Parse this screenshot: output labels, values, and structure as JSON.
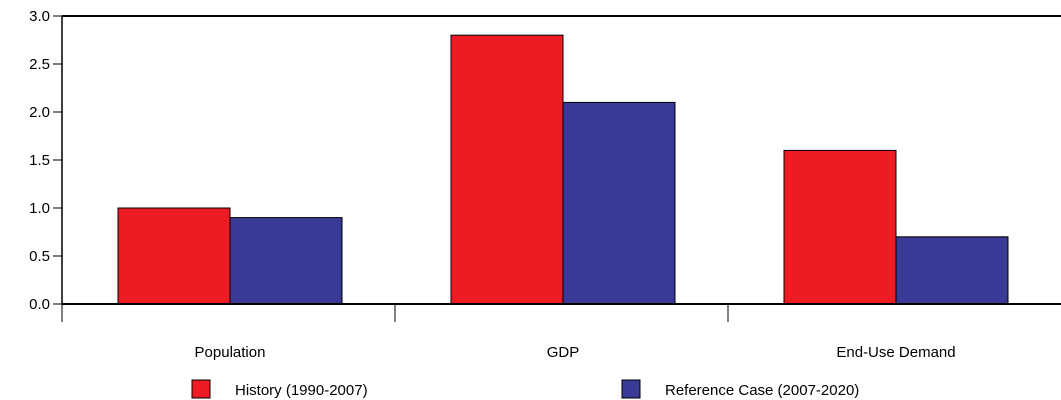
{
  "chart_data": {
    "type": "bar",
    "title": "",
    "xlabel": "",
    "ylabel": "",
    "ylim": [
      0,
      3.0
    ],
    "yticks": [
      "0.0",
      "0.5",
      "1.0",
      "1.5",
      "2.0",
      "2.5",
      "3.0"
    ],
    "categories": [
      "Population",
      "GDP",
      "End-Use Demand"
    ],
    "series": [
      {
        "name": "History (1990-2007)",
        "color": "#ed1c24",
        "values": [
          1.0,
          2.8,
          1.6
        ]
      },
      {
        "name": "Reference Case (2007-2020)",
        "color": "#393996",
        "values": [
          0.9,
          2.1,
          0.7
        ]
      }
    ],
    "grid": false,
    "legend_position": "bottom"
  }
}
